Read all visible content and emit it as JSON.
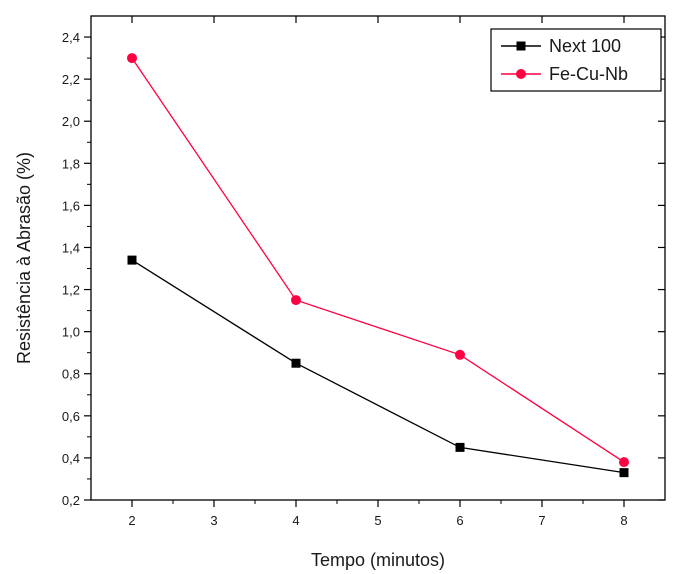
{
  "chart_data": {
    "type": "line",
    "title": "",
    "xlabel": "Tempo (minutos)",
    "ylabel": "Resistência à Abrasão (%)",
    "xlim": [
      1.5,
      8.5
    ],
    "ylim": [
      0.2,
      2.5
    ],
    "x_ticks": [
      2,
      3,
      4,
      5,
      6,
      7,
      8
    ],
    "x_tick_labels": [
      "2",
      "3",
      "4",
      "5",
      "6",
      "7",
      "8"
    ],
    "y_ticks": [
      0.2,
      0.4,
      0.6,
      0.8,
      1.0,
      1.2,
      1.4,
      1.6,
      1.8,
      2.0,
      2.2,
      2.4
    ],
    "y_tick_labels": [
      "0,2",
      "0,4",
      "0,6",
      "0,8",
      "1,0",
      "1,2",
      "1,4",
      "1,6",
      "1,8",
      "2,0",
      "2,2",
      "2,4"
    ],
    "grid": false,
    "legend_position": "top-right",
    "series": [
      {
        "name": "Next 100",
        "color": "#000000",
        "marker": "square",
        "x": [
          2,
          4,
          6,
          8
        ],
        "y": [
          1.34,
          0.85,
          0.45,
          0.33
        ]
      },
      {
        "name": "Fe-Cu-Nb",
        "color": "#ff0040",
        "marker": "circle",
        "x": [
          2,
          4,
          6,
          8
        ],
        "y": [
          2.3,
          1.15,
          0.89,
          0.38
        ]
      }
    ]
  }
}
